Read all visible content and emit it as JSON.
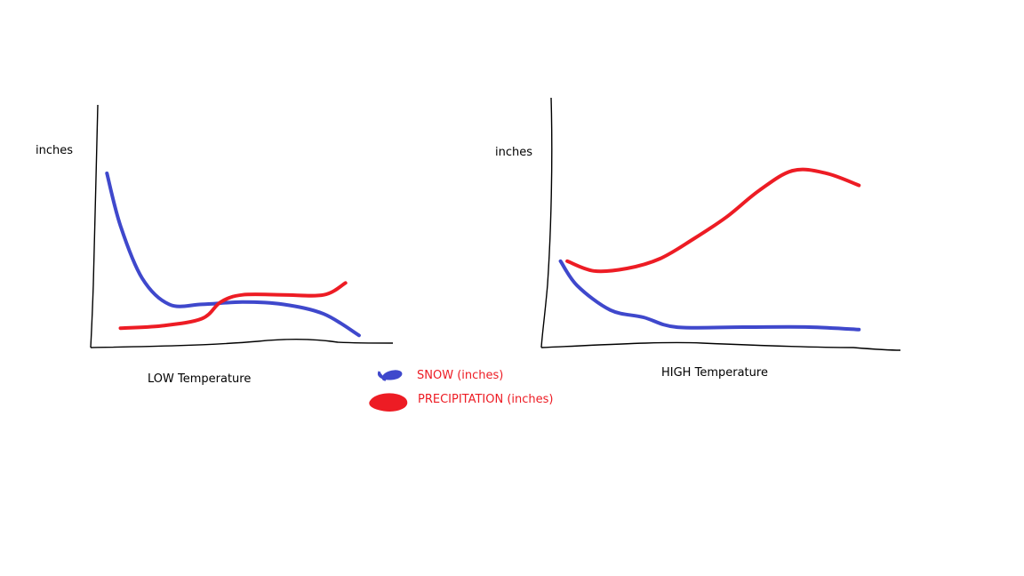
{
  "colors": {
    "snow": "#3f48cc",
    "precipitation": "#ed1c24",
    "axis": "#000000"
  },
  "legend": {
    "snow_label": "SNOW (inches)",
    "precipitation_label": "PRECIPITATION (inches)"
  },
  "chart_data": [
    {
      "type": "line",
      "xlabel": "LOW Temperature",
      "ylabel": "inches",
      "grid": false,
      "series": [
        {
          "name": "SNOW (inches)",
          "x": [
            0.05,
            0.1,
            0.18,
            0.28,
            0.4,
            0.55,
            0.7,
            0.85,
            0.98
          ],
          "y": [
            0.72,
            0.5,
            0.28,
            0.17,
            0.17,
            0.18,
            0.17,
            0.13,
            0.04
          ]
        },
        {
          "name": "PRECIPITATION (inches)",
          "x": [
            0.1,
            0.25,
            0.4,
            0.47,
            0.55,
            0.7,
            0.85,
            0.93
          ],
          "y": [
            0.07,
            0.08,
            0.11,
            0.18,
            0.21,
            0.21,
            0.21,
            0.26
          ]
        }
      ]
    },
    {
      "type": "line",
      "xlabel": "HIGH Temperature",
      "ylabel": "inches",
      "grid": false,
      "series": [
        {
          "name": "SNOW (inches)",
          "x": [
            0.05,
            0.1,
            0.2,
            0.3,
            0.4,
            0.6,
            0.8,
            0.95
          ],
          "y": [
            0.35,
            0.25,
            0.15,
            0.12,
            0.08,
            0.08,
            0.08,
            0.07
          ]
        },
        {
          "name": "PRECIPITATION (inches)",
          "x": [
            0.07,
            0.15,
            0.25,
            0.35,
            0.45,
            0.55,
            0.65,
            0.75,
            0.85,
            0.95
          ],
          "y": [
            0.35,
            0.31,
            0.32,
            0.36,
            0.44,
            0.53,
            0.64,
            0.72,
            0.71,
            0.66
          ]
        }
      ]
    }
  ]
}
